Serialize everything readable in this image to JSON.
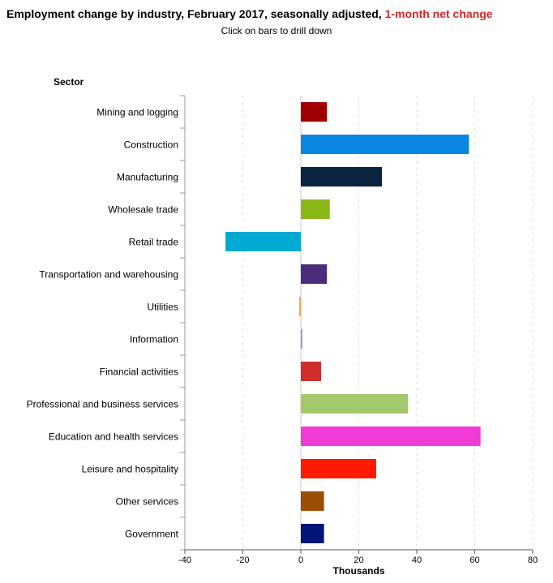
{
  "title": {
    "main": "Employment change by industry, February 2017, seasonally adjusted, ",
    "highlight": "1-month net change"
  },
  "subtitle": "Click on bars to drill down",
  "chart_data": {
    "type": "bar",
    "orientation": "horizontal",
    "title": "Employment change by industry, February 2017, seasonally adjusted, 1-month net change",
    "category_axis_title": "Sector",
    "xlabel": "Thousands",
    "xlim": [
      -40,
      80
    ],
    "xticks": [
      -40,
      -20,
      0,
      20,
      40,
      60,
      80
    ],
    "grid": "vertical dashed",
    "categories": [
      "Mining and logging",
      "Construction",
      "Manufacturing",
      "Wholesale trade",
      "Retail trade",
      "Transportation and warehousing",
      "Utilities",
      "Information",
      "Financial activities",
      "Professional and business services",
      "Education and health services",
      "Leisure and hospitality",
      "Other services",
      "Government"
    ],
    "values": [
      9,
      58,
      28,
      10,
      -26,
      9,
      -0.5,
      0.5,
      7,
      37,
      62,
      26,
      8,
      8
    ],
    "colors": [
      "#a00000",
      "#0a87e3",
      "#0b2440",
      "#8ab818",
      "#00aad2",
      "#4a2c7c",
      "#f2974b",
      "#6fa3d8",
      "#d22d2d",
      "#a4c96c",
      "#f23ad7",
      "#ff1a00",
      "#9b4e06",
      "#001577"
    ]
  }
}
